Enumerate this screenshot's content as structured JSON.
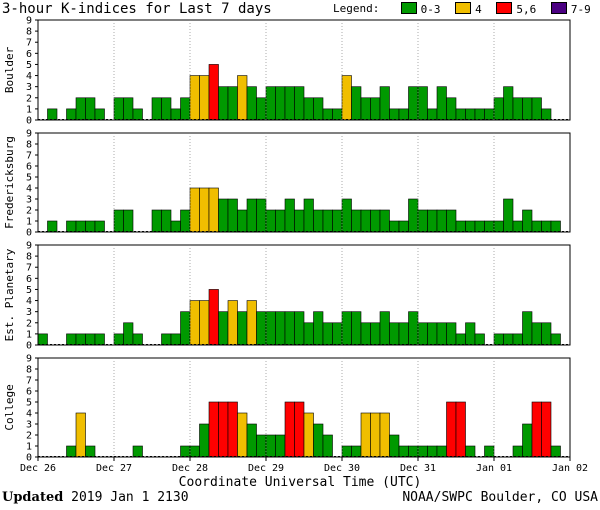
{
  "title": "3-hour K-indices for Last 7 days",
  "legend": {
    "label": "Legend:",
    "items": [
      {
        "label": "0-3",
        "color": "#009900"
      },
      {
        "label": "4",
        "color": "#F0BE00"
      },
      {
        "label": "5,6",
        "color": "#FF0000"
      },
      {
        "label": "7-9",
        "color": "#4B0082"
      }
    ]
  },
  "footer": {
    "updated_label": "Updated",
    "updated_value": "2019 Jan  1 2130",
    "source": "NOAA/SWPC Boulder, CO USA"
  },
  "chart_data": {
    "type": "bar",
    "title": "3-hour K-indices for Last 7 days",
    "xlabel": "Coordinate Universal Time (UTC)",
    "x_ticks": [
      "Dec 26",
      "Dec 27",
      "Dec 28",
      "Dec 29",
      "Dec 30",
      "Dec 31",
      "Jan 01",
      "Jan 02"
    ],
    "y_ticks": [
      0,
      1,
      2,
      3,
      4,
      5,
      6,
      7,
      8,
      9
    ],
    "ylim": [
      0,
      9
    ],
    "color_scale": [
      {
        "range": "0-3",
        "color": "#009900"
      },
      {
        "range": "4",
        "color": "#F0BE00"
      },
      {
        "range": "5,6",
        "color": "#FF0000"
      },
      {
        "range": "7-9",
        "color": "#4B0082"
      }
    ],
    "panels": [
      {
        "station": "Boulder",
        "values": [
          0,
          1,
          0,
          1,
          2,
          2,
          1,
          0,
          2,
          2,
          1,
          0,
          2,
          2,
          1,
          2,
          4,
          4,
          5,
          3,
          3,
          4,
          3,
          2,
          3,
          3,
          3,
          3,
          2,
          2,
          1,
          1,
          4,
          3,
          2,
          2,
          3,
          1,
          1,
          3,
          3,
          1,
          3,
          2,
          1,
          1,
          1,
          1,
          2,
          3,
          2,
          2,
          2,
          1,
          0,
          0
        ]
      },
      {
        "station": "Fredericksburg",
        "values": [
          0,
          1,
          0,
          1,
          1,
          1,
          1,
          0,
          2,
          2,
          0,
          0,
          2,
          2,
          1,
          2,
          4,
          4,
          4,
          3,
          3,
          2,
          3,
          3,
          2,
          2,
          3,
          2,
          3,
          2,
          2,
          2,
          3,
          2,
          2,
          2,
          2,
          1,
          1,
          3,
          2,
          2,
          2,
          2,
          1,
          1,
          1,
          1,
          1,
          3,
          1,
          2,
          1,
          1,
          1,
          0
        ]
      },
      {
        "station": "Est. Planetary",
        "values": [
          1,
          0,
          0,
          1,
          1,
          1,
          1,
          0,
          1,
          2,
          1,
          0,
          0,
          1,
          1,
          3,
          4,
          4,
          5,
          3,
          4,
          3,
          4,
          3,
          3,
          3,
          3,
          3,
          2,
          3,
          2,
          2,
          3,
          3,
          2,
          2,
          3,
          2,
          2,
          3,
          2,
          2,
          2,
          2,
          1,
          2,
          1,
          0,
          1,
          1,
          1,
          3,
          2,
          2,
          1,
          0
        ]
      },
      {
        "station": "College",
        "values": [
          0,
          0,
          0,
          1,
          4,
          1,
          0,
          0,
          0,
          0,
          1,
          0,
          0,
          0,
          0,
          1,
          1,
          3,
          5,
          5,
          5,
          4,
          3,
          2,
          2,
          2,
          5,
          5,
          4,
          3,
          2,
          0,
          1,
          1,
          4,
          4,
          4,
          2,
          1,
          1,
          1,
          1,
          1,
          5,
          5,
          1,
          0,
          1,
          0,
          0,
          1,
          3,
          5,
          5,
          1,
          0
        ]
      }
    ]
  }
}
